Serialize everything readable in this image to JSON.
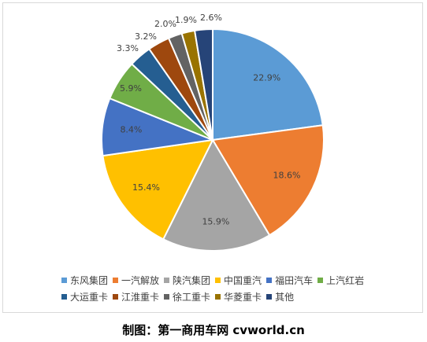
{
  "chart_data": {
    "type": "pie",
    "series": [
      {
        "name": "东风集团",
        "value": 22.9,
        "label": "22.9%",
        "color": "#5B9BD5"
      },
      {
        "name": "一汽解放",
        "value": 18.6,
        "label": "18.6%",
        "color": "#ED7D31"
      },
      {
        "name": "陕汽集团",
        "value": 15.9,
        "label": "15.9%",
        "color": "#A5A5A5"
      },
      {
        "name": "中国重汽",
        "value": 15.4,
        "label": "15.4%",
        "color": "#FFC000"
      },
      {
        "name": "福田汽车",
        "value": 8.4,
        "label": "8.4%",
        "color": "#4472C4"
      },
      {
        "name": "上汽红岩",
        "value": 5.9,
        "label": "5.9%",
        "color": "#70AD47"
      },
      {
        "name": "大运重卡",
        "value": 3.3,
        "label": "3.3%",
        "color": "#255E91"
      },
      {
        "name": "江淮重卡",
        "value": 3.2,
        "label": "3.2%",
        "color": "#9E480E"
      },
      {
        "name": "徐工重卡",
        "value": 2.0,
        "label": "2.0%",
        "color": "#636363"
      },
      {
        "name": "华菱重卡",
        "value": 1.9,
        "label": "1.9%",
        "color": "#997300"
      },
      {
        "name": "其他",
        "value": 2.6,
        "label": "2.6%",
        "color": "#264478"
      }
    ],
    "legend_position": "bottom"
  },
  "caption": "制图：第一商用车网 cvworld.cn"
}
